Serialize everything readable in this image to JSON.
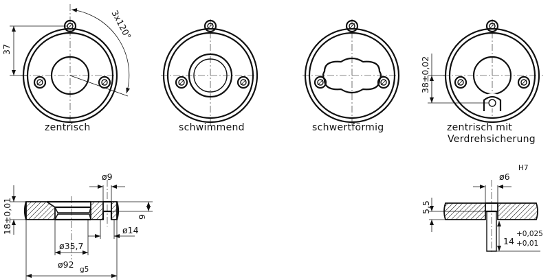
{
  "views": [
    {
      "caption": "zentrisch"
    },
    {
      "caption": "schwimmend"
    },
    {
      "caption": "schwertförmig"
    },
    {
      "caption_line1": "zentrisch mit",
      "caption_line2": "Verdrehsicherung"
    }
  ],
  "top_dims": {
    "radius": "37",
    "angle": "3x120°",
    "offset": "38±0,02"
  },
  "section_left": {
    "bore": "ø9",
    "height": "18±0,01",
    "depth": "9",
    "counterbore": "ø14",
    "center_dia": "ø35,7",
    "outer_dia": "ø92",
    "outer_tol": "g5"
  },
  "section_right": {
    "pin_dia": "ø6",
    "pin_tol": "H7",
    "step": "5,5",
    "pin_len": "14",
    "tol_upper": "+0,025",
    "tol_lower": "+0,01"
  }
}
